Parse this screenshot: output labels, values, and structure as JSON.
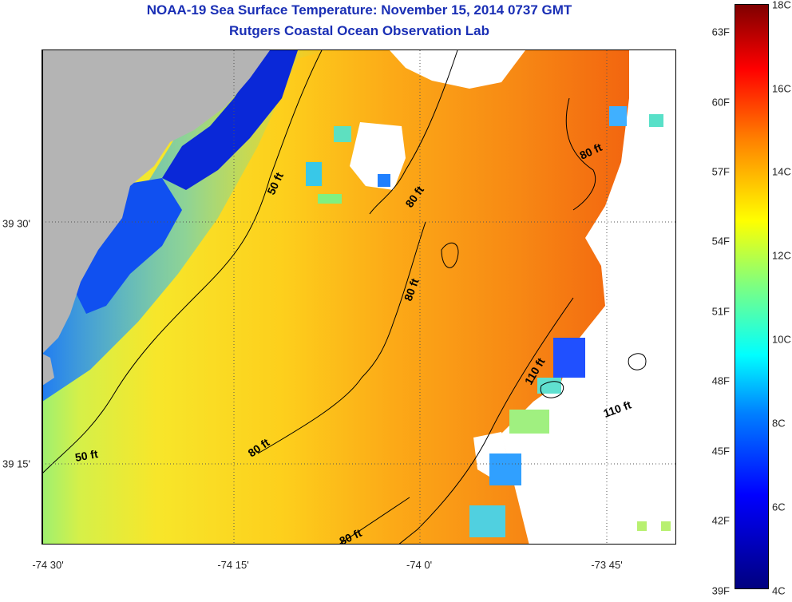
{
  "titles": {
    "line1": "NOAA-19 Sea Surface Temperature:  November 15, 2014 0737 GMT",
    "line2": "Rutgers Coastal Ocean Observation Lab"
  },
  "map": {
    "longitude_labels": [
      "-74 30'",
      "-74 15'",
      "-74 0'",
      "-73 45'"
    ],
    "latitude_labels": [
      "39 30'",
      "39 15'"
    ],
    "contour_labels": [
      "50 ft",
      "80 ft",
      "80 ft",
      "80 ft",
      "80 ft",
      "80 ft",
      "110 ft",
      "110 ft",
      "50 ft"
    ],
    "land_color": "#b4b4b4",
    "no_data_color": "#ffffff"
  },
  "colorbar": {
    "fahrenheit_labels": [
      "63F",
      "60F",
      "57F",
      "54F",
      "51F",
      "48F",
      "45F",
      "42F",
      "39F"
    ],
    "celsius_labels": [
      "18C",
      "16C",
      "14C",
      "12C",
      "10C",
      "8C",
      "6C",
      "4C"
    ],
    "range_c": [
      4,
      18
    ],
    "colors": [
      "#00007f",
      "#0000ff",
      "#0080ff",
      "#00ffff",
      "#7fff7f",
      "#ffff00",
      "#ff8000",
      "#ff0000",
      "#7f0000"
    ]
  }
}
